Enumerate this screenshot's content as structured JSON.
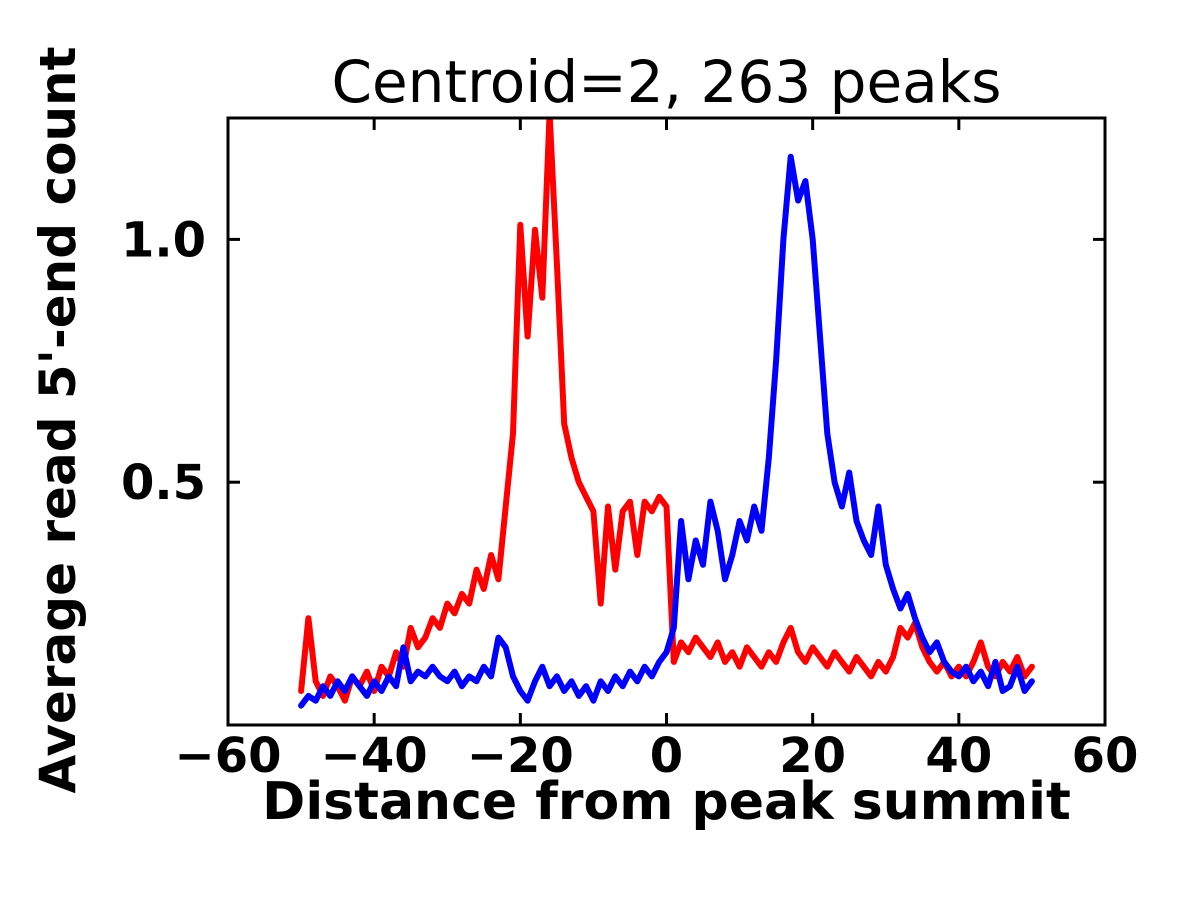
{
  "chart_data": {
    "type": "line",
    "title": "Centroid=2, 263 peaks",
    "xlabel": "Distance from peak summit",
    "ylabel": "Average read 5'-end count",
    "xlim": [
      -60,
      60
    ],
    "ylim": [
      0,
      1.25
    ],
    "xticks": [
      -60,
      -40,
      -20,
      0,
      20,
      40,
      60
    ],
    "yticks": [
      0.5,
      1.0
    ],
    "grid": false,
    "legend": "none",
    "colors": {
      "axis": "#000000",
      "background": "#ffffff"
    },
    "series": [
      {
        "name": "red",
        "color": "#ff0000",
        "x": [
          -50,
          -49,
          -48,
          -47,
          -46,
          -45,
          -44,
          -43,
          -42,
          -41,
          -40,
          -39,
          -38,
          -37,
          -36,
          -35,
          -34,
          -33,
          -32,
          -31,
          -30,
          -29,
          -28,
          -27,
          -26,
          -25,
          -24,
          -23,
          -22,
          -21,
          -20,
          -19,
          -18,
          -17,
          -16,
          -15,
          -14,
          -13,
          -12,
          -11,
          -10,
          -9,
          -8,
          -7,
          -6,
          -5,
          -4,
          -3,
          -2,
          -1,
          0,
          1,
          2,
          3,
          4,
          5,
          6,
          7,
          8,
          9,
          10,
          11,
          12,
          13,
          14,
          15,
          16,
          17,
          18,
          19,
          20,
          21,
          22,
          23,
          24,
          25,
          26,
          27,
          28,
          29,
          30,
          31,
          32,
          33,
          34,
          35,
          36,
          37,
          38,
          39,
          40,
          41,
          42,
          43,
          44,
          45,
          46,
          47,
          48,
          49,
          50
        ],
        "y": [
          0.07,
          0.22,
          0.09,
          0.06,
          0.1,
          0.08,
          0.05,
          0.1,
          0.08,
          0.11,
          0.07,
          0.12,
          0.1,
          0.15,
          0.12,
          0.2,
          0.16,
          0.18,
          0.22,
          0.2,
          0.25,
          0.23,
          0.27,
          0.25,
          0.32,
          0.28,
          0.35,
          0.3,
          0.45,
          0.6,
          1.03,
          0.8,
          1.02,
          0.88,
          1.26,
          0.95,
          0.62,
          0.55,
          0.5,
          0.47,
          0.44,
          0.25,
          0.45,
          0.32,
          0.44,
          0.46,
          0.35,
          0.46,
          0.44,
          0.47,
          0.45,
          0.13,
          0.17,
          0.15,
          0.18,
          0.16,
          0.14,
          0.17,
          0.13,
          0.15,
          0.12,
          0.16,
          0.14,
          0.12,
          0.15,
          0.13,
          0.17,
          0.2,
          0.15,
          0.13,
          0.16,
          0.14,
          0.12,
          0.15,
          0.13,
          0.11,
          0.14,
          0.12,
          0.1,
          0.13,
          0.11,
          0.14,
          0.2,
          0.18,
          0.21,
          0.16,
          0.13,
          0.11,
          0.13,
          0.1,
          0.12,
          0.1,
          0.13,
          0.17,
          0.12,
          0.1,
          0.13,
          0.11,
          0.14,
          0.1,
          0.12
        ]
      },
      {
        "name": "blue",
        "color": "#0000ff",
        "x": [
          -50,
          -49,
          -48,
          -47,
          -46,
          -45,
          -44,
          -43,
          -42,
          -41,
          -40,
          -39,
          -38,
          -37,
          -36,
          -35,
          -34,
          -33,
          -32,
          -31,
          -30,
          -29,
          -28,
          -27,
          -26,
          -25,
          -24,
          -23,
          -22,
          -21,
          -20,
          -19,
          -18,
          -17,
          -16,
          -15,
          -14,
          -13,
          -12,
          -11,
          -10,
          -9,
          -8,
          -7,
          -6,
          -5,
          -4,
          -3,
          -2,
          -1,
          0,
          1,
          2,
          3,
          4,
          5,
          6,
          7,
          8,
          9,
          10,
          11,
          12,
          13,
          14,
          15,
          16,
          17,
          18,
          19,
          20,
          21,
          22,
          23,
          24,
          25,
          26,
          27,
          28,
          29,
          30,
          31,
          32,
          33,
          34,
          35,
          36,
          37,
          38,
          39,
          40,
          41,
          42,
          43,
          44,
          45,
          46,
          47,
          48,
          49,
          50
        ],
        "y": [
          0.04,
          0.06,
          0.05,
          0.08,
          0.06,
          0.09,
          0.07,
          0.1,
          0.08,
          0.06,
          0.09,
          0.07,
          0.1,
          0.08,
          0.16,
          0.09,
          0.11,
          0.1,
          0.12,
          0.1,
          0.09,
          0.11,
          0.08,
          0.1,
          0.09,
          0.12,
          0.1,
          0.18,
          0.16,
          0.1,
          0.07,
          0.05,
          0.09,
          0.12,
          0.08,
          0.1,
          0.07,
          0.09,
          0.06,
          0.08,
          0.05,
          0.09,
          0.07,
          0.1,
          0.08,
          0.11,
          0.09,
          0.12,
          0.1,
          0.13,
          0.15,
          0.2,
          0.42,
          0.3,
          0.38,
          0.33,
          0.46,
          0.4,
          0.3,
          0.35,
          0.42,
          0.38,
          0.45,
          0.4,
          0.55,
          0.75,
          1.0,
          1.17,
          1.08,
          1.12,
          1.0,
          0.8,
          0.6,
          0.5,
          0.45,
          0.52,
          0.42,
          0.38,
          0.35,
          0.45,
          0.33,
          0.28,
          0.24,
          0.27,
          0.22,
          0.18,
          0.15,
          0.17,
          0.13,
          0.11,
          0.1,
          0.12,
          0.09,
          0.11,
          0.08,
          0.13,
          0.07,
          0.08,
          0.12,
          0.07,
          0.09
        ]
      }
    ]
  }
}
